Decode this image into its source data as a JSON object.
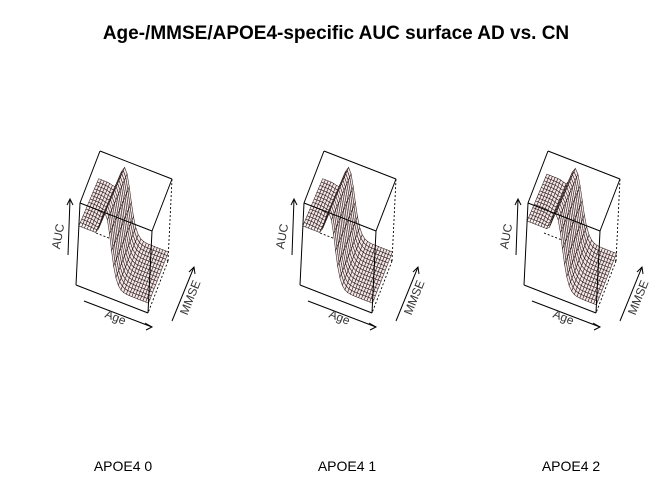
{
  "chart_data": {
    "type": "surface3d",
    "title": "Age-/MMSE/APOE4-specific AUC surface AD vs. CN",
    "zlabel": "AUC",
    "xlabel": "Age",
    "ylabel": "MMSE",
    "axis_ticks_shown": false,
    "panels": [
      {
        "label": "APOE4 0",
        "surface_profile": {
          "peak_position": 0.34,
          "peak_width": 0.15,
          "baseline": 0.12,
          "peak_height": 1.0,
          "left_level": 0.72
        }
      },
      {
        "label": "APOE4 1",
        "surface_profile": {
          "peak_position": 0.34,
          "peak_width": 0.15,
          "baseline": 0.12,
          "peak_height": 1.0,
          "left_level": 0.72
        }
      },
      {
        "label": "APOE4 2",
        "surface_profile": {
          "peak_position": 0.38,
          "peak_width": 0.16,
          "baseline": 0.1,
          "peak_height": 1.0,
          "left_level": 0.78
        }
      }
    ],
    "colors": {
      "mesh": "#2b1a1a",
      "facet": "#f3e6e6",
      "box": "#000000"
    }
  }
}
